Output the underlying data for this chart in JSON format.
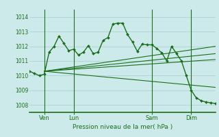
{
  "bg_color": "#cceaea",
  "grid_color": "#aacccc",
  "line_color": "#1a6e1a",
  "xlabel": "Pression niveau de la mer( hPa )",
  "ylim": [
    1007.5,
    1014.5
  ],
  "yticks": [
    1008,
    1009,
    1010,
    1011,
    1012,
    1013,
    1014
  ],
  "xlim": [
    0,
    38
  ],
  "vlines_x": [
    3,
    9,
    25,
    33
  ],
  "vline_labels": [
    "Ven",
    "Lun",
    "Sam",
    "Dim"
  ],
  "series1_x": [
    0,
    1,
    2,
    3,
    4,
    5,
    6,
    7,
    8,
    9,
    10,
    11,
    12,
    13,
    14,
    15,
    16,
    17,
    18,
    19,
    20,
    21,
    22,
    23,
    24,
    25,
    26,
    27,
    28,
    29,
    30,
    31,
    32,
    33,
    34,
    35,
    36,
    37,
    38
  ],
  "series1_y": [
    1010.3,
    1010.15,
    1010.0,
    1010.1,
    1011.6,
    1012.0,
    1012.7,
    1012.2,
    1011.7,
    1011.8,
    1011.4,
    1011.6,
    1012.05,
    1011.5,
    1011.6,
    1012.4,
    1012.6,
    1013.5,
    1013.58,
    1013.58,
    1012.8,
    1012.3,
    1011.65,
    1012.15,
    1012.1,
    1012.1,
    1011.85,
    1011.55,
    1011.0,
    1012.0,
    1011.5,
    1011.0,
    1010.0,
    1009.0,
    1008.5,
    1008.3,
    1008.2,
    1008.15,
    1008.1
  ],
  "trend1_x": [
    3,
    38
  ],
  "trend1_y": [
    1010.3,
    1012.0
  ],
  "trend2_x": [
    3,
    38
  ],
  "trend2_y": [
    1010.3,
    1011.5
  ],
  "trend3_x": [
    3,
    38
  ],
  "trend3_y": [
    1010.3,
    1011.1
  ],
  "trend4_x": [
    3,
    38
  ],
  "trend4_y": [
    1010.3,
    1009.2
  ],
  "figsize": [
    3.2,
    2.0
  ],
  "dpi": 100
}
